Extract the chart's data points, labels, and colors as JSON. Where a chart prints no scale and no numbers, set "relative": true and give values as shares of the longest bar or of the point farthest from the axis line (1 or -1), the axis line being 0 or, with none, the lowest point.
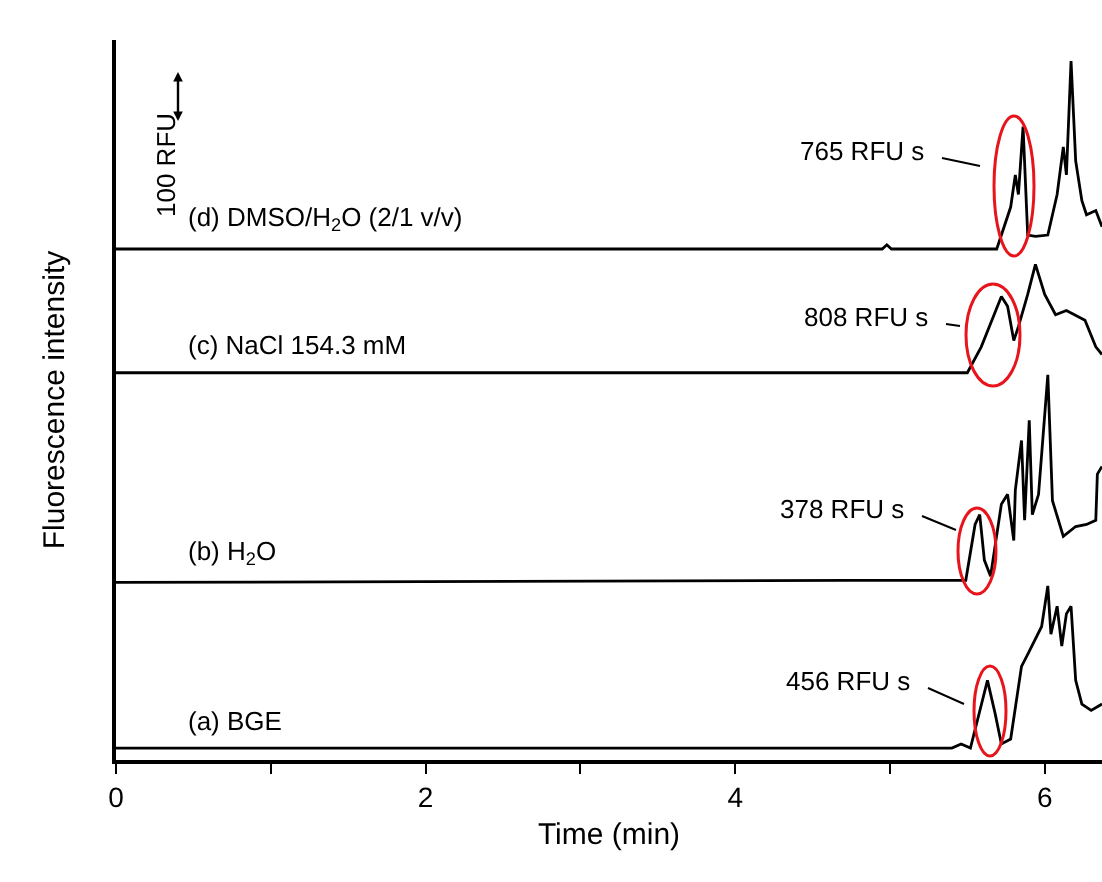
{
  "chart_data": {
    "type": "line",
    "relative": true,
    "xlabel": "Time (min)",
    "ylabel": "Fluorescence intensity",
    "xlim": [
      0,
      6.37
    ],
    "xticks": [
      0,
      {
        "value": 1,
        "label": null
      },
      2,
      {
        "value": 3,
        "label": null
      },
      4,
      {
        "value": 5,
        "label": null
      },
      6
    ],
    "legend": false,
    "marker": "none",
    "line_style": "solid",
    "series": [
      {
        "name": "(a) BGE",
        "color": "#000000",
        "x": [
          0,
          5.4,
          5.46,
          5.52,
          5.63,
          5.68,
          5.72,
          5.78,
          5.85,
          5.89,
          5.98,
          6.02,
          6.04,
          6.08,
          6.11,
          6.14,
          6.17,
          6.2,
          6.24,
          6.3,
          6.37
        ],
        "values": [
          0.017,
          0.017,
          0.023,
          0.017,
          0.114,
          0.066,
          0.023,
          0.03,
          0.134,
          0.151,
          0.191,
          0.249,
          0.18,
          0.22,
          0.163,
          0.209,
          0.22,
          0.114,
          0.08,
          0.071,
          0.08
        ]
      },
      {
        "name": "(b) H$_{2}$O",
        "color": "#000000",
        "x": [
          0,
          4.72,
          5.49,
          5.55,
          5.58,
          5.61,
          5.65,
          5.72,
          5.76,
          5.8,
          5.81,
          5.85,
          5.87,
          5.9,
          5.92,
          5.96,
          6.02,
          6.05,
          6.12,
          6.2,
          6.27,
          6.33,
          6.34,
          6.37
        ],
        "values": [
          0.254,
          0.257,
          0.257,
          0.337,
          0.351,
          0.286,
          0.263,
          0.366,
          0.38,
          0.314,
          0.386,
          0.457,
          0.343,
          0.486,
          0.351,
          0.38,
          0.551,
          0.371,
          0.32,
          0.334,
          0.337,
          0.343,
          0.409,
          0.42
        ]
      },
      {
        "name": "(c) NaCl 154.3 mM",
        "color": "#000000",
        "x": [
          0,
          5.5,
          5.59,
          5.72,
          5.76,
          5.8,
          5.83,
          5.89,
          5.94,
          6.0,
          6.07,
          6.14,
          6.26,
          6.33,
          6.37
        ],
        "values": [
          0.554,
          0.554,
          0.591,
          0.663,
          0.649,
          0.6,
          0.62,
          0.666,
          0.709,
          0.666,
          0.637,
          0.643,
          0.629,
          0.591,
          0.58
        ]
      },
      {
        "name": "(d) DMSO/H$_{2}$O (2/1 v/v)",
        "color": "#000000",
        "x": [
          0,
          4.95,
          4.98,
          5.01,
          5.69,
          5.78,
          5.81,
          5.83,
          5.86,
          5.89,
          5.94,
          6.02,
          6.08,
          6.12,
          6.14,
          6.17,
          6.2,
          6.24,
          6.27,
          6.33,
          6.37
        ],
        "values": [
          0.731,
          0.731,
          0.737,
          0.731,
          0.731,
          0.791,
          0.837,
          0.809,
          0.906,
          0.751,
          0.749,
          0.751,
          0.809,
          0.877,
          0.837,
          1.0,
          0.857,
          0.8,
          0.78,
          0.786,
          0.763
        ]
      }
    ],
    "annotations": [
      "456 RFU s",
      "378 RFU s",
      "808 RFU s",
      "765 RFU s",
      "100 RFU"
    ]
  }
}
